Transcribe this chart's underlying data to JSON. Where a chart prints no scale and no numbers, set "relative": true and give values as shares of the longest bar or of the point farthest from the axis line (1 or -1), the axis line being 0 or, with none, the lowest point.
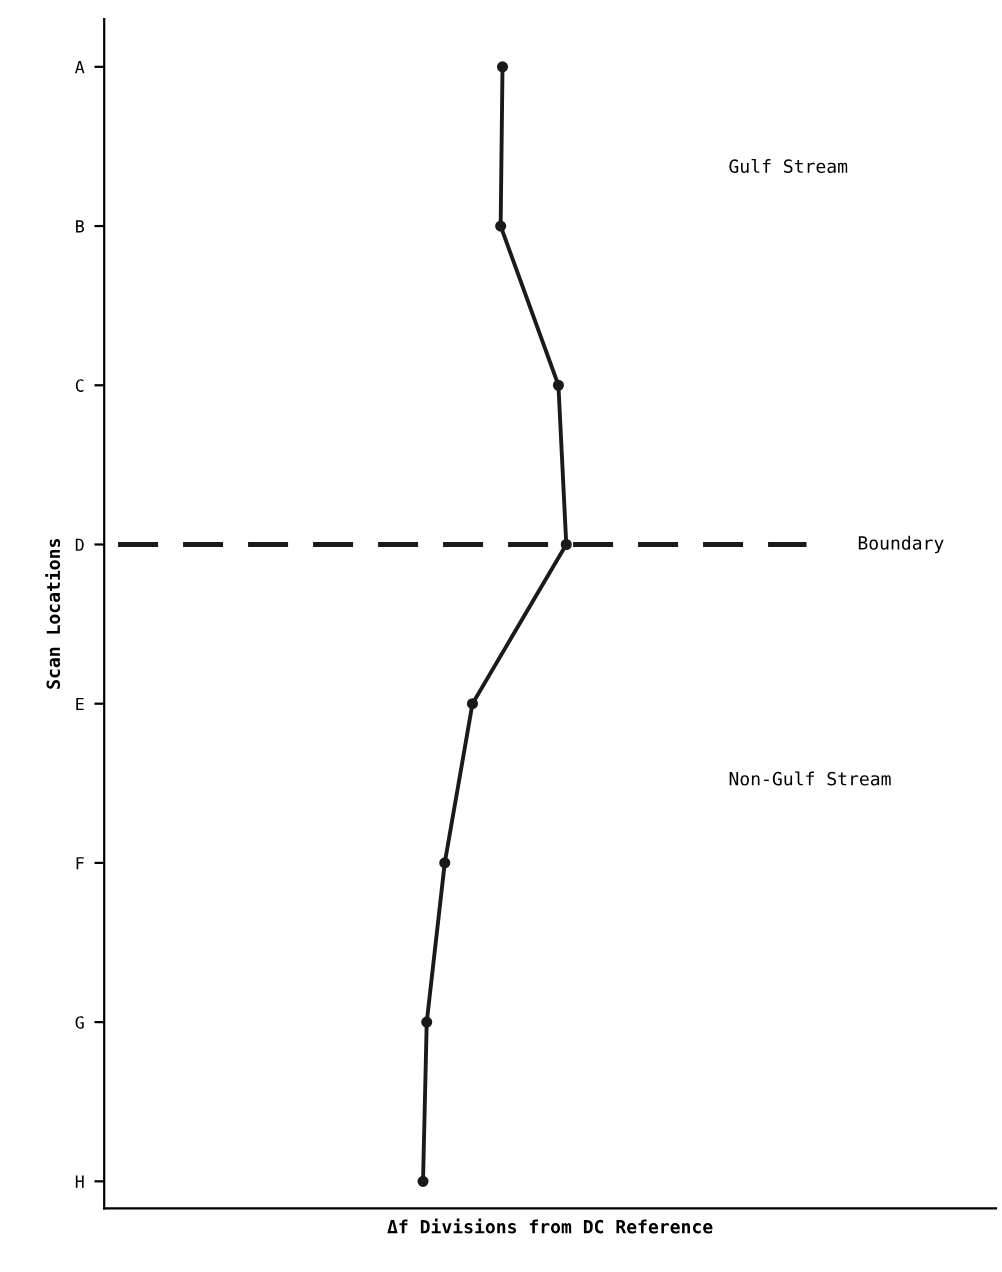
{
  "chart_data": {
    "type": "line",
    "orientation": "horizontal",
    "relative": true,
    "categories": [
      "A",
      "B",
      "C",
      "D",
      "E",
      "F",
      "G",
      "H"
    ],
    "series": [
      {
        "color": "#1a1a1a",
        "values": [
          0.862,
          0.858,
          0.983,
          1,
          0.797,
          0.737,
          0.698,
          0.69
        ]
      }
    ],
    "marker": "circle",
    "line_style": "solid",
    "grid": false,
    "legend": false,
    "tick_labels": "y",
    "xlabel": "Δf Divisions from DC Reference",
    "ylabel": "Scan Locations",
    "ref_lines": [
      {
        "axis": "y",
        "value": "D",
        "label": "Boundary",
        "color": "#1a1a1a",
        "line_style": "dashed"
      }
    ],
    "annotations": [
      "Gulf Stream",
      "Non-Gulf Stream"
    ]
  }
}
